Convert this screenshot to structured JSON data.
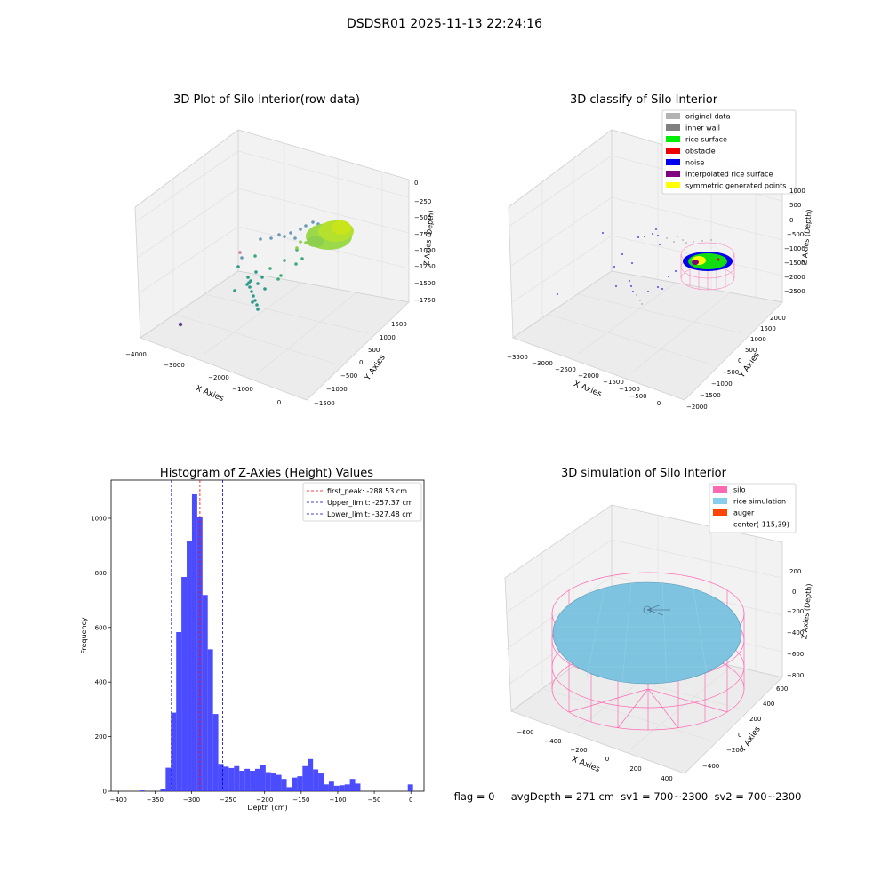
{
  "suptitle": "DSDSR01 2025-11-13 22:24:16",
  "panels": {
    "raw": {
      "title": "3D Plot of Silo Interior(row data)",
      "xlabel": "X Axies",
      "ylabel": "Y Axies",
      "zlabel": "Z Axies (Depth)",
      "xticks": [
        "−4000",
        "−3000",
        "−2000",
        "−1000",
        "0"
      ],
      "yticks": [
        "−1500",
        "−1000",
        "−500",
        "0",
        "500",
        "1000",
        "1500"
      ],
      "zticks": [
        "0",
        "−250",
        "−500",
        "−750",
        "−1000",
        "−1250",
        "−1500",
        "−1750"
      ]
    },
    "classify": {
      "title": "3D classify of Silo Interior",
      "xlabel": "X Axies",
      "ylabel": "Y Axies",
      "zlabel": "Z Axies (Depth)",
      "xticks": [
        "−3500",
        "−3000",
        "−2500",
        "−2000",
        "−1500",
        "−1000",
        "−500",
        "0"
      ],
      "yticks": [
        "−2000",
        "−1500",
        "−1000",
        "−500",
        "0",
        "500",
        "1000",
        "1500",
        "2000"
      ],
      "zticks": [
        "1000",
        "500",
        "0",
        "−500",
        "−1000",
        "−1500",
        "−2000",
        "−2500"
      ],
      "legend": [
        {
          "label": "original data",
          "color": "#b3b3b3"
        },
        {
          "label": "inner wall",
          "color": "#808080"
        },
        {
          "label": "rice surface",
          "color": "#00ee00"
        },
        {
          "label": "obstacle",
          "color": "#ee0000"
        },
        {
          "label": "noise",
          "color": "#0000ee"
        },
        {
          "label": "interpolated rice surface",
          "color": "#800080"
        },
        {
          "label": "symmetric generated points",
          "color": "#ffff00"
        }
      ]
    },
    "simulation": {
      "title": "3D simulation of Silo Interior",
      "xlabel": "X Axies",
      "ylabel": "Y Axies",
      "zlabel": "Z Axies (Depth)",
      "xticks": [
        "−600",
        "−400",
        "−200",
        "0",
        "200",
        "400"
      ],
      "yticks": [
        "−400",
        "−200",
        "0",
        "200",
        "400",
        "600"
      ],
      "zticks": [
        "200",
        "0",
        "−200",
        "−400",
        "−600",
        "−800"
      ],
      "legend": [
        {
          "label": "silo",
          "color": "#ff69b4"
        },
        {
          "label": "rice simulation",
          "color": "#87ceeb"
        },
        {
          "label": "auger",
          "color": "#ff4500"
        },
        {
          "label": "center(-115,39)",
          "color": ""
        }
      ],
      "status_text": "flag = 0     avgDepth = 271 cm  sv1 = 700~2300  sv2 = 700~2300"
    }
  },
  "chart_data": {
    "type": "bar",
    "title": "Histogram of Z-Axies (Height) Values",
    "xlabel": "Depth (cm)",
    "ylabel": "Frequency",
    "xlim": [
      -410,
      18
    ],
    "ylim": [
      0,
      1140
    ],
    "xticks": [
      -400,
      -350,
      -300,
      -250,
      -200,
      -150,
      -100,
      -50,
      0
    ],
    "yticks": [
      0,
      200,
      400,
      600,
      800,
      1000
    ],
    "bin_width": 7.2,
    "bin_starts": [
      -371.4,
      -364.2,
      -357.0,
      -349.8,
      -342.6,
      -335.4,
      -328.2,
      -321.0,
      -313.8,
      -306.6,
      -299.4,
      -292.2,
      -285.0,
      -277.8,
      -270.6,
      -263.4,
      -256.2,
      -249.0,
      -241.8,
      -234.6,
      -227.4,
      -220.2,
      -213.0,
      -205.8,
      -198.6,
      -191.4,
      -184.2,
      -177.0,
      -169.8,
      -162.6,
      -155.4,
      -148.2,
      -141.0,
      -133.8,
      -126.6,
      -119.4,
      -112.2,
      -105.0,
      -97.8,
      -90.6,
      -83.4,
      -76.2,
      -69.0,
      -61.8,
      -54.6,
      -47.4,
      -40.2,
      -33.0,
      -25.8,
      -18.6,
      -11.4,
      -4.2
    ],
    "counts": [
      3,
      0,
      0,
      0,
      8,
      86,
      288,
      583,
      785,
      917,
      1088,
      1005,
      719,
      520,
      283,
      100,
      90,
      85,
      92,
      75,
      82,
      75,
      82,
      95,
      70,
      65,
      60,
      45,
      15,
      50,
      55,
      92,
      118,
      80,
      65,
      25,
      35,
      20,
      22,
      25,
      45,
      28,
      0,
      0,
      0,
      0,
      0,
      0,
      0,
      0,
      0,
      25
    ],
    "lines": [
      {
        "name": "first_peak: -288.53 cm",
        "x": -288.53,
        "color": "#ff0000"
      },
      {
        "name": "Upper_limit: -257.37 cm",
        "x": -257.37,
        "color": "#0000cc"
      },
      {
        "name": "Lower_limit: -327.48 cm",
        "x": -327.48,
        "color": "#0000cc"
      }
    ],
    "bar_color": "#3333ff"
  }
}
